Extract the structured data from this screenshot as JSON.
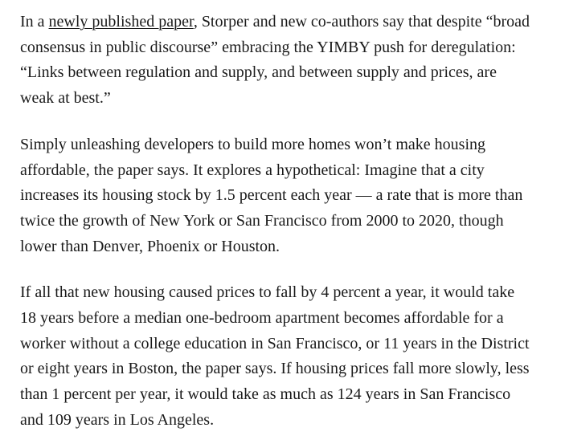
{
  "article": {
    "colors": {
      "text": "#1a1a1a",
      "background": "#ffffff",
      "link": "#1a1a1a"
    },
    "link_label": "newly published paper",
    "paragraphs": [
      {
        "segments": [
          {
            "type": "text",
            "text": "In a "
          },
          {
            "type": "link",
            "text": "newly published paper"
          },
          {
            "type": "text",
            "text": ", Storper and new co-authors say that despite “broad consensus in public discourse” embracing the YIMBY push for deregulation: “Links between regulation and supply, and between supply and prices, are weak at best.”"
          }
        ]
      },
      {
        "segments": [
          {
            "type": "text",
            "text": "Simply unleashing developers to build more homes won’t make housing affordable, the paper says. It explores a hypothetical: Imagine that a city increases its housing stock by 1.5 percent each year — a rate that is more than twice the growth of New York or San Francisco from 2000 to 2020, though lower than Denver, Phoenix or Houston."
          }
        ]
      },
      {
        "segments": [
          {
            "type": "text",
            "text": "If all that new housing caused prices to fall by 4 percent a year, it would take 18 years before a median one-bedroom apartment becomes affordable for a worker without a college education in San Francisco, or 11 years in the District or eight years in Boston, the paper says. If housing prices fall more slowly, less than 1 percent per year, it would take as much as 124 years in San Francisco and 109 years in Los Angeles."
          }
        ]
      }
    ]
  }
}
